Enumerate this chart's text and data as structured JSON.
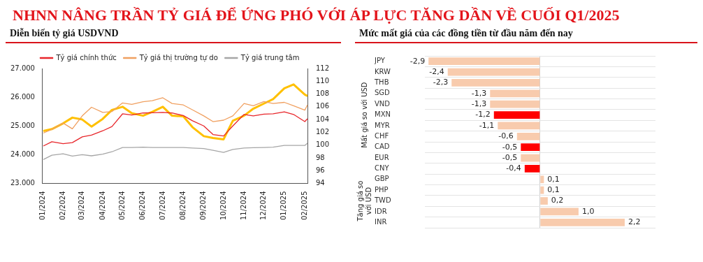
{
  "chart_data": [
    {
      "type": "line",
      "title": "NHNN NÂNG TRẦN TỶ GIÁ ĐỂ ỨNG PHÓ VỚI ÁP LỰC TĂNG DẦN VỀ CUỐI Q1/2025",
      "subtitle": "Diễn biến tỷ giá USDVND",
      "x": [
        "2024-01-02",
        "2024-01-15",
        "2024-02-01",
        "2024-02-15",
        "2024-03-01",
        "2024-03-15",
        "2024-04-01",
        "2024-04-15",
        "2024-05-01",
        "2024-05-15",
        "2024-06-01",
        "2024-06-15",
        "2024-07-01",
        "2024-07-15",
        "2024-08-01",
        "2024-08-15",
        "2024-09-01",
        "2024-09-15",
        "2024-10-01",
        "2024-10-15",
        "2024-11-01",
        "2024-11-15",
        "2024-12-01",
        "2024-12-15",
        "2025-01-01",
        "2025-01-15",
        "2025-02-01",
        "2025-02-05"
      ],
      "series": [
        {
          "name": "Tỷ giá chính thức",
          "color": "#e8262b",
          "values": [
            24300,
            24450,
            24380,
            24420,
            24620,
            24680,
            24830,
            24980,
            25420,
            25380,
            25450,
            25460,
            25470,
            25450,
            25360,
            25180,
            25000,
            24700,
            24650,
            25000,
            25400,
            25350,
            25410,
            25420,
            25490,
            25400,
            25150,
            25250
          ]
        },
        {
          "name": "Tỷ giá thị trường tự do",
          "color": "#f0a060",
          "values": [
            24750,
            24880,
            25100,
            24900,
            25350,
            25650,
            25470,
            25500,
            25800,
            25750,
            25840,
            25880,
            25980,
            25780,
            25730,
            25560,
            25350,
            25150,
            25200,
            25350,
            25780,
            25700,
            25850,
            25780,
            25820,
            25700,
            25550,
            25730
          ]
        },
        {
          "name": "Tỷ giá trung tâm",
          "color": "#a6a6a6",
          "values": [
            23830,
            23980,
            24030,
            23950,
            24000,
            23960,
            24020,
            24100,
            24250,
            24250,
            24260,
            24250,
            24250,
            24250,
            24250,
            24230,
            24210,
            24150,
            24080,
            24180,
            24230,
            24240,
            24250,
            24260,
            24320,
            24320,
            24320,
            24400
          ]
        },
        {
          "color": "#ffc000",
          "axis": "y2",
          "values": [
            102.2,
            102.5,
            103.4,
            104.3,
            104.0,
            102.9,
            104.1,
            105.5,
            106.0,
            105.0,
            104.6,
            105.2,
            106.0,
            104.6,
            104.5,
            102.8,
            101.4,
            101.1,
            100.9,
            103.8,
            104.6,
            105.7,
            106.5,
            107.2,
            108.9,
            109.5,
            107.9,
            107.7
          ]
        }
      ],
      "xlim": [
        "2024-01-01",
        "2025-02-06"
      ],
      "xticks": [
        {
          "value": "2024-01-01",
          "label": "01/2024"
        },
        {
          "value": "2024-02-01",
          "label": "02/2024"
        },
        {
          "value": "2024-03-01",
          "label": "03/2024"
        },
        {
          "value": "2024-04-01",
          "label": "04/2024"
        },
        {
          "value": "2024-05-01",
          "label": "05/2024"
        },
        {
          "value": "2024-06-01",
          "label": "06/2024"
        },
        {
          "value": "2024-07-01",
          "label": "07/2024"
        },
        {
          "value": "2024-08-01",
          "label": "08/2024"
        },
        {
          "value": "2024-09-01",
          "label": "09/2024"
        },
        {
          "value": "2024-10-01",
          "label": "10/2024"
        },
        {
          "value": "2024-11-01",
          "label": "11/2024"
        },
        {
          "value": "2024-12-01",
          "label": "12/2024"
        },
        {
          "value": "2025-01-01",
          "label": "01/2025"
        },
        {
          "value": "2025-02-01",
          "label": "02/2025"
        }
      ],
      "ylim": [
        23000,
        27000
      ],
      "yticks": [
        {
          "value": 23000,
          "label": "23.000"
        },
        {
          "value": 24000,
          "label": "24.000"
        },
        {
          "value": 25000,
          "label": "25.000"
        },
        {
          "value": 26000,
          "label": "26.000"
        },
        {
          "value": 27000,
          "label": "27.000"
        }
      ],
      "y2lim": [
        94,
        112
      ],
      "y2ticks": [
        94,
        96,
        98,
        100,
        102,
        104,
        106,
        108,
        110,
        112
      ],
      "legend": "top",
      "grid": false,
      "marker": "none",
      "line_style": "solid"
    },
    {
      "type": "bar",
      "orientation": "horizontal",
      "title": "Mức mất giá của các đồng tiền từ đầu năm đến nay",
      "categories": [
        "JPY",
        "KRW",
        "THB",
        "SGD",
        "VND",
        "MXN",
        "MYR",
        "CHF",
        "CAD",
        "EUR",
        "CNY",
        "GBP",
        "PHP",
        "TWD",
        "IDR",
        "INR"
      ],
      "values": [
        -2.9,
        -2.4,
        -2.3,
        -1.3,
        -1.3,
        -1.2,
        -1.1,
        -0.6,
        -0.5,
        -0.5,
        -0.4,
        0.1,
        0.1,
        0.2,
        1.0,
        2.2
      ],
      "colors": [
        "#f8cbad",
        "#f8cbad",
        "#f8cbad",
        "#f8cbad",
        "#f8cbad",
        "#ff0000",
        "#f8cbad",
        "#f8cbad",
        "#ff0000",
        "#f8cbad",
        "#ff0000",
        "#f8cbad",
        "#f8cbad",
        "#f8cbad",
        "#f8cbad",
        "#f8cbad"
      ],
      "value_labels": [
        "-2,9",
        "-2,4",
        "-2,3",
        "-1,3",
        "-1,3",
        "-1,2",
        "-1,1",
        "-0,6",
        "-0,5",
        "-0,5",
        "-0,4",
        "0,1",
        "0,1",
        "0,2",
        "1,0",
        "2,2"
      ],
      "annotations": [
        "Mất giá so với USD",
        "Tăng giá so với USD"
      ],
      "grid": "y",
      "tick_labels": "y",
      "legend": false
    }
  ]
}
